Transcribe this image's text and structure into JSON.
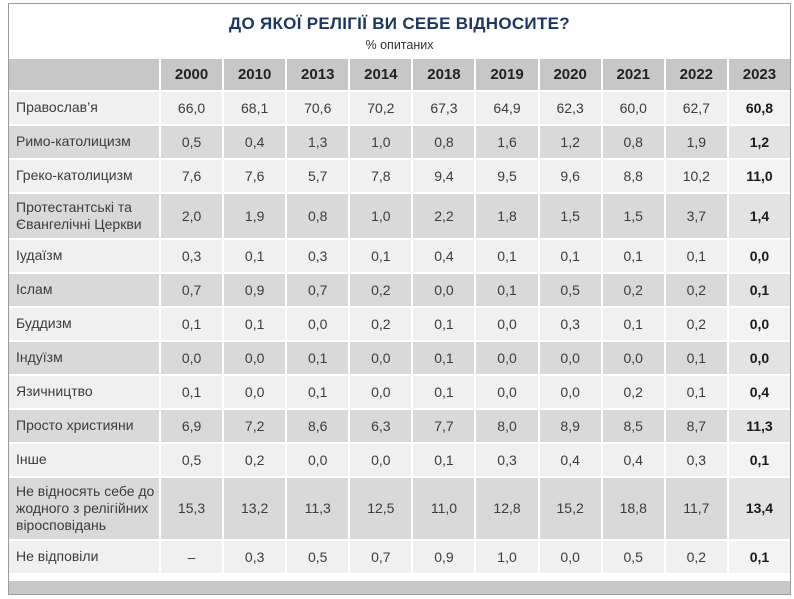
{
  "title": "ДО ЯКОЇ РЕЛІГІЇ ВИ СЕБЕ ВІДНОСИТЕ?",
  "subtitle": "% опитаних",
  "colors": {
    "title_navy": "#1d3765",
    "header_gray": "#c7c7c7",
    "row_light": "#f0f0f0",
    "row_dark": "#d9d9d9",
    "footer_gray": "#c8c8c8",
    "frame_border": "#9b9b9b",
    "text": "#3c3c3c"
  },
  "chart_data": {
    "type": "table",
    "title": "ДО ЯКОЇ РЕЛІГІЇ ВИ СЕБЕ ВІДНОСИТЕ?",
    "subtitle": "% опитаних",
    "columns": [
      "2000",
      "2010",
      "2013",
      "2014",
      "2018",
      "2019",
      "2020",
      "2021",
      "2022",
      "2023"
    ],
    "corner_label": "",
    "last_column_emphasized": "2023",
    "rows": [
      {
        "label": "Православ’я",
        "values": [
          "66,0",
          "68,1",
          "70,6",
          "70,2",
          "67,3",
          "64,9",
          "62,3",
          "60,0",
          "62,7",
          "60,8"
        ]
      },
      {
        "label": "Римо-католицизм",
        "values": [
          "0,5",
          "0,4",
          "1,3",
          "1,0",
          "0,8",
          "1,6",
          "1,2",
          "0,8",
          "1,9",
          "1,2"
        ]
      },
      {
        "label": "Греко-католицизм",
        "values": [
          "7,6",
          "7,6",
          "5,7",
          "7,8",
          "9,4",
          "9,5",
          "9,6",
          "8,8",
          "10,2",
          "11,0"
        ]
      },
      {
        "label": "Протестантські та Євангелічні Церкви",
        "values": [
          "2,0",
          "1,9",
          "0,8",
          "1,0",
          "2,2",
          "1,8",
          "1,5",
          "1,5",
          "3,7",
          "1,4"
        ]
      },
      {
        "label": "Іудаїзм",
        "values": [
          "0,3",
          "0,1",
          "0,3",
          "0,1",
          "0,4",
          "0,1",
          "0,1",
          "0,1",
          "0,1",
          "0,0"
        ]
      },
      {
        "label": "Іслам",
        "values": [
          "0,7",
          "0,9",
          "0,7",
          "0,2",
          "0,0",
          "0,1",
          "0,5",
          "0,2",
          "0,2",
          "0,1"
        ]
      },
      {
        "label": "Буддизм",
        "values": [
          "0,1",
          "0,1",
          "0,0",
          "0,2",
          "0,1",
          "0,0",
          "0,3",
          "0,1",
          "0,2",
          "0,0"
        ]
      },
      {
        "label": "Індуїзм",
        "values": [
          "0,0",
          "0,0",
          "0,1",
          "0,0",
          "0,1",
          "0,0",
          "0,0",
          "0,0",
          "0,1",
          "0,0"
        ]
      },
      {
        "label": "Язичництво",
        "values": [
          "0,1",
          "0,0",
          "0,1",
          "0,0",
          "0,1",
          "0,0",
          "0,0",
          "0,2",
          "0,1",
          "0,4"
        ]
      },
      {
        "label": "Просто християни",
        "values": [
          "6,9",
          "7,2",
          "8,6",
          "6,3",
          "7,7",
          "8,0",
          "8,9",
          "8,5",
          "8,7",
          "11,3"
        ]
      },
      {
        "label": "Інше",
        "values": [
          "0,5",
          "0,2",
          "0,0",
          "0,0",
          "0,1",
          "0,3",
          "0,4",
          "0,4",
          "0,3",
          "0,1"
        ]
      },
      {
        "label": "Не відносять себе до жодного з релігійних віросповідань",
        "values": [
          "15,3",
          "13,2",
          "11,3",
          "12,5",
          "11,0",
          "12,8",
          "15,2",
          "18,8",
          "11,7",
          "13,4"
        ]
      },
      {
        "label": "Не відповіли",
        "values": [
          "–",
          "0,3",
          "0,5",
          "0,7",
          "0,9",
          "1,0",
          "0,0",
          "0,5",
          "0,2",
          "0,1"
        ]
      }
    ]
  }
}
